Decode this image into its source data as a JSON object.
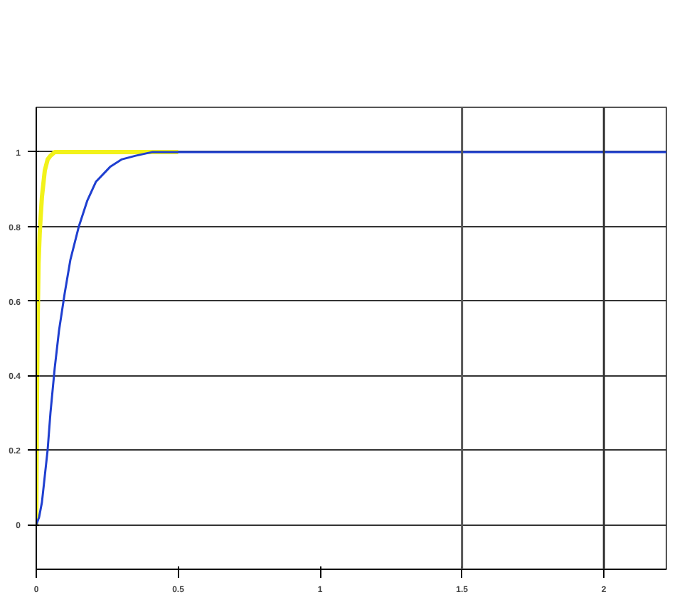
{
  "chart_data": {
    "type": "line",
    "xlim": [
      0,
      2.22
    ],
    "ylim": [
      -0.12,
      1.12
    ],
    "xticks": [
      0,
      0.5,
      1,
      1.5,
      2
    ],
    "yticks": [
      0,
      0.2,
      0.4,
      0.6,
      0.8,
      1
    ],
    "grid": "y",
    "ref_lines": [
      {
        "axis": "x",
        "value": 1.5,
        "color": "#555555"
      },
      {
        "axis": "x",
        "value": 2,
        "color": "#333333"
      }
    ],
    "series": [
      {
        "color": "#f2f21a",
        "x": [
          0,
          0.002,
          0.005,
          0.008,
          0.012,
          0.015,
          0.02,
          0.03,
          0.04,
          0.05,
          0.065,
          0.1,
          0.2,
          0.3,
          0.4,
          0.5
        ],
        "values": [
          0,
          0.3,
          0.55,
          0.7,
          0.78,
          0.82,
          0.88,
          0.95,
          0.98,
          0.99,
          1,
          1,
          1,
          1,
          1,
          1
        ]
      },
      {
        "color": "#1f3fd0",
        "x": [
          0,
          0.01,
          0.02,
          0.03,
          0.04,
          0.05,
          0.065,
          0.08,
          0.1,
          0.12,
          0.15,
          0.18,
          0.21,
          0.26,
          0.3,
          0.35,
          0.41,
          0.5,
          1,
          1.5,
          2,
          2.22
        ],
        "values": [
          0,
          0.02,
          0.06,
          0.13,
          0.2,
          0.3,
          0.42,
          0.52,
          0.62,
          0.71,
          0.8,
          0.87,
          0.92,
          0.96,
          0.98,
          0.99,
          1,
          1,
          1,
          1,
          1,
          1
        ]
      }
    ]
  }
}
